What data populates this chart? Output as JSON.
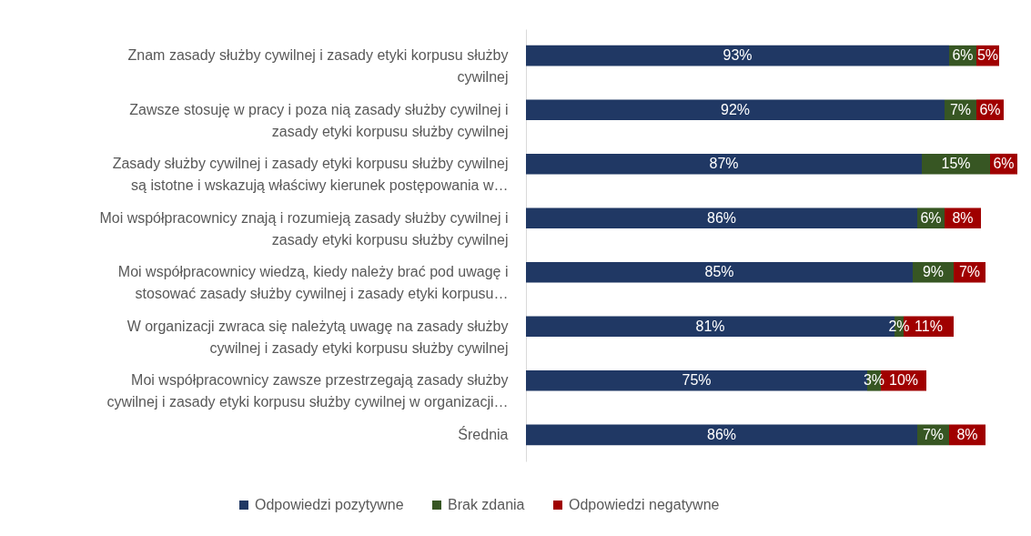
{
  "chart_data": {
    "type": "bar",
    "orientation": "horizontal",
    "stacked": true,
    "legend": "bottom",
    "categories": [
      "Znam zasady służby cywilnej i zasady etyki korpusu służby cywilnej",
      "Zawsze stosuję w pracy i poza nią zasady służby cywilnej i zasady etyki korpusu służby cywilnej",
      "Zasady służby cywilnej i zasady etyki korpusu służby cywilnej są istotne i wskazują właściwy kierunek postępowania w…",
      "Moi współpracownicy znają i rozumieją zasady służby cywilnej i zasady etyki korpusu służby cywilnej",
      "Moi współpracownicy wiedzą, kiedy należy brać pod uwagę i stosować zasady służby cywilnej i zasady etyki korpusu…",
      "W organizacji zwraca się należytą uwagę na zasady służby cywilnej i zasady etyki korpusu służby cywilnej",
      "Moi współpracownicy zawsze przestrzegają zasady służby cywilnej i zasady etyki korpusu służby cywilnej w organizacji…",
      "Średnia"
    ],
    "series": [
      {
        "name": "Odpowiedzi pozytywne",
        "color": "#203864",
        "values": [
          93,
          92,
          87,
          86,
          85,
          81,
          75,
          86
        ],
        "value_labels": [
          "93%",
          "92%",
          "87%",
          "86%",
          "85%",
          "81%",
          "75%",
          "86%"
        ]
      },
      {
        "name": "Brak zdania",
        "color": "#375623",
        "values": [
          6,
          7,
          15,
          6,
          9,
          2,
          3,
          7
        ],
        "value_labels": [
          "6%",
          "7%",
          "15%",
          "6%",
          "9%",
          "2%",
          "3%",
          "7%"
        ]
      },
      {
        "name": "Odpowiedzi negatywne",
        "color": "#a00000",
        "values": [
          5,
          6,
          6,
          8,
          7,
          11,
          10,
          8
        ],
        "value_labels": [
          "5%",
          "6%",
          "6%",
          "8%",
          "7%",
          "11%",
          "10%",
          "8%"
        ]
      }
    ]
  }
}
